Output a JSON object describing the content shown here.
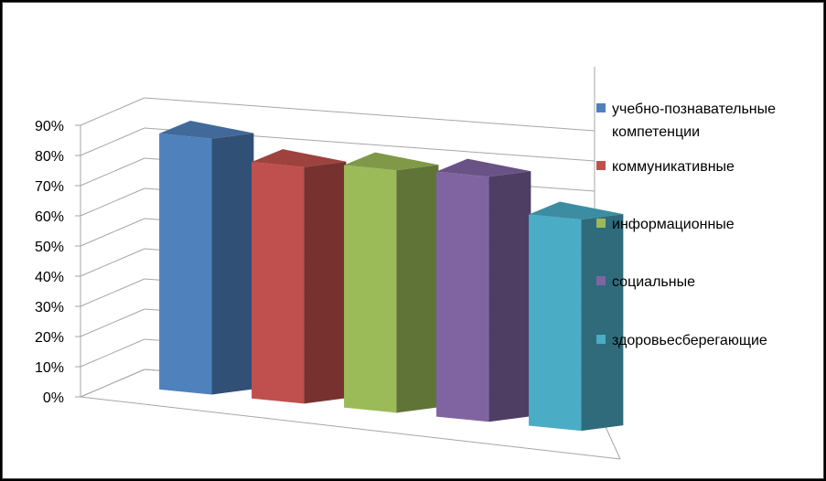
{
  "chart_data": {
    "type": "bar",
    "title": "",
    "xlabel": "",
    "ylabel": "",
    "ylim": [
      0,
      90
    ],
    "y_tick_labels": [
      "0%",
      "10%",
      "20%",
      "30%",
      "40%",
      "50%",
      "60%",
      "70%",
      "80%",
      "90%"
    ],
    "categories": [
      "учебно-познавательные компетенции",
      "коммуникативные",
      "информационные",
      "социальные",
      "здоровьесберегающие"
    ],
    "values": [
      80,
      75,
      78,
      80,
      70
    ],
    "legend_position": "right",
    "grid": true,
    "series": [
      {
        "label": "учебно-познавательные",
        "label2": "компетенции",
        "value": 80,
        "color": "#4F81BD"
      },
      {
        "label": "коммуникативные",
        "label2": "",
        "value": 75,
        "color": "#C0504D"
      },
      {
        "label": "информационные",
        "label2": "",
        "value": 78,
        "color": "#9BBB59"
      },
      {
        "label": "социальные",
        "label2": "",
        "value": 80,
        "color": "#8064A2"
      },
      {
        "label": "здоровьесберегающие",
        "label2": "",
        "value": 70,
        "color": "#4BACC6"
      }
    ]
  }
}
